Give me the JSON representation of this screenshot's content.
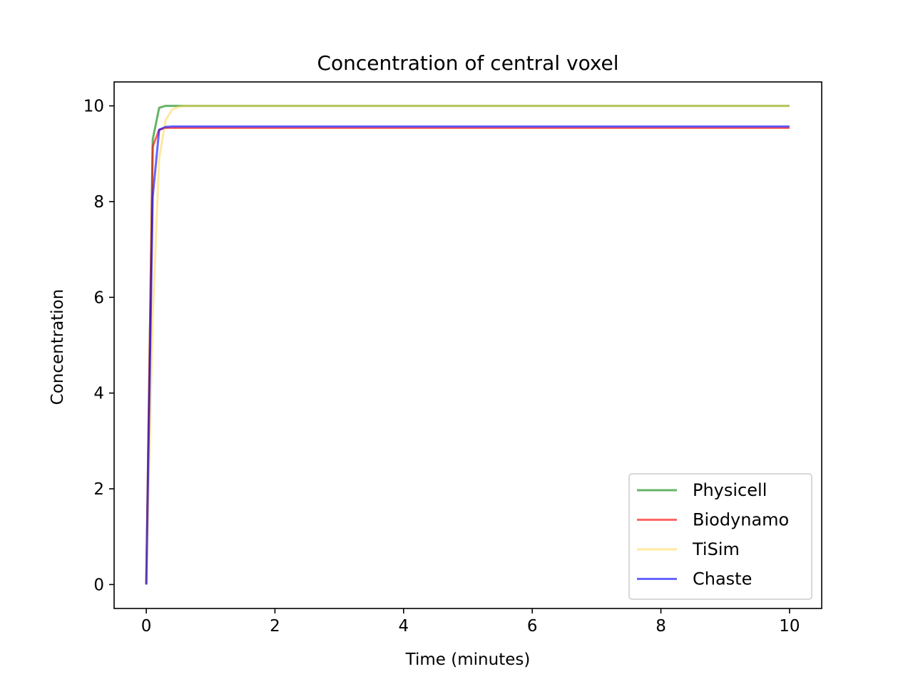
{
  "chart_data": {
    "type": "line",
    "title": "Concentration of central voxel",
    "xlabel": "Time (minutes)",
    "ylabel": "Concentration",
    "xlim": [
      -0.5,
      10.5
    ],
    "ylim": [
      -0.5,
      10.5
    ],
    "xticks": [
      0,
      2,
      4,
      6,
      8,
      10
    ],
    "yticks": [
      0,
      2,
      4,
      6,
      8,
      10
    ],
    "grid": false,
    "legend_position": "lower-right",
    "series": [
      {
        "name": "Physicell",
        "color": "#008000",
        "x": [
          0,
          0.1,
          0.2,
          0.3,
          0.4,
          0.5,
          0.6,
          1,
          2,
          4,
          6,
          8,
          10
        ],
        "y": [
          0,
          9.3,
          9.96,
          10.0,
          10.0,
          10.0,
          10.0,
          10.0,
          10.0,
          10.0,
          10.0,
          10.0,
          10.0
        ]
      },
      {
        "name": "Biodynamo",
        "color": "#ff0000",
        "x": [
          0,
          0.1,
          0.2,
          0.3,
          0.4,
          0.6,
          1,
          2,
          4,
          6,
          8,
          10
        ],
        "y": [
          0,
          9.15,
          9.5,
          9.54,
          9.54,
          9.54,
          9.54,
          9.54,
          9.54,
          9.54,
          9.54,
          9.54
        ]
      },
      {
        "name": "TiSim",
        "color": "#ffd54f",
        "x": [
          0,
          0.1,
          0.2,
          0.3,
          0.4,
          0.5,
          0.6,
          0.8,
          1,
          2,
          4,
          6,
          8,
          10
        ],
        "y": [
          0,
          5.6,
          8.9,
          9.7,
          9.92,
          9.98,
          10.0,
          10.0,
          10.0,
          10.0,
          10.0,
          10.0,
          10.0,
          10.0
        ]
      },
      {
        "name": "Chaste",
        "color": "#0000ff",
        "x": [
          0,
          0.1,
          0.2,
          0.3,
          0.4,
          0.6,
          1,
          2,
          4,
          6,
          8,
          10
        ],
        "y": [
          0,
          8.1,
          9.5,
          9.56,
          9.57,
          9.57,
          9.57,
          9.57,
          9.57,
          9.57,
          9.57,
          9.57
        ]
      }
    ]
  }
}
